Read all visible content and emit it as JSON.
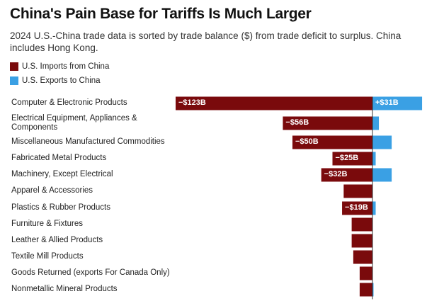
{
  "header": {
    "title": "China's Pain Base for Tariffs Is Much Larger",
    "subtitle": "2024 U.S.-China trade data is sorted by trade balance ($) from trade deficit to surplus. China includes Hong Kong."
  },
  "legend": {
    "imports_label": "U.S. Imports from China",
    "exports_label": "U.S. Exports to China"
  },
  "colors": {
    "imports": "#7a0a0c",
    "exports": "#3aa0e4",
    "baseline": "#333333"
  },
  "chart_data": {
    "type": "bar",
    "orientation": "horizontal-diverging",
    "title": "China's Pain Base for Tariffs Is Much Larger",
    "categories": [
      "Computer & Electronic Products",
      "Electrical Equipment, Appliances & Components",
      "Miscellaneous Manufactured Commodities",
      "Fabricated Metal Products",
      "Machinery, Except Electrical",
      "Apparel & Accessories",
      "Plastics & Rubber Products",
      "Furniture & Fixtures",
      "Leather & Allied Products",
      "Textile Mill Products",
      "Goods Returned (exports For Canada Only)",
      "Nonmetallic Mineral Products"
    ],
    "category_lines": [
      [
        "Computer & Electronic Products"
      ],
      [
        "Electrical Equipment, Appliances &",
        "Components"
      ],
      [
        "Miscellaneous Manufactured Commodities"
      ],
      [
        "Fabricated Metal Products"
      ],
      [
        "Machinery, Except Electrical"
      ],
      [
        "Apparel & Accessories"
      ],
      [
        "Plastics & Rubber Products"
      ],
      [
        "Furniture & Fixtures"
      ],
      [
        "Leather & Allied Products"
      ],
      [
        "Textile Mill Products"
      ],
      [
        "Goods Returned (exports For Canada Only)"
      ],
      [
        "Nonmetallic Mineral Products"
      ]
    ],
    "series": [
      {
        "name": "U.S. Imports from China",
        "values": [
          -123,
          -56,
          -50,
          -25,
          -32,
          -18,
          -19,
          -13,
          -13,
          -12,
          -8,
          -8
        ],
        "labels": [
          "−$123B",
          "−$56B",
          "−$50B",
          "−$25B",
          "−$32B",
          "",
          "−$19B",
          "",
          "",
          "",
          "",
          ""
        ]
      },
      {
        "name": "U.S. Exports to China",
        "values": [
          31,
          4,
          12,
          2,
          12,
          0,
          2,
          0,
          0,
          0,
          0,
          0.5
        ],
        "labels": [
          "+$31B",
          "",
          "",
          "",
          "",
          "",
          "",
          "",
          "",
          "",
          "",
          ""
        ]
      }
    ],
    "xlabel": "",
    "ylabel": "",
    "xlim": [
      -123,
      31
    ],
    "unit": "$B"
  }
}
